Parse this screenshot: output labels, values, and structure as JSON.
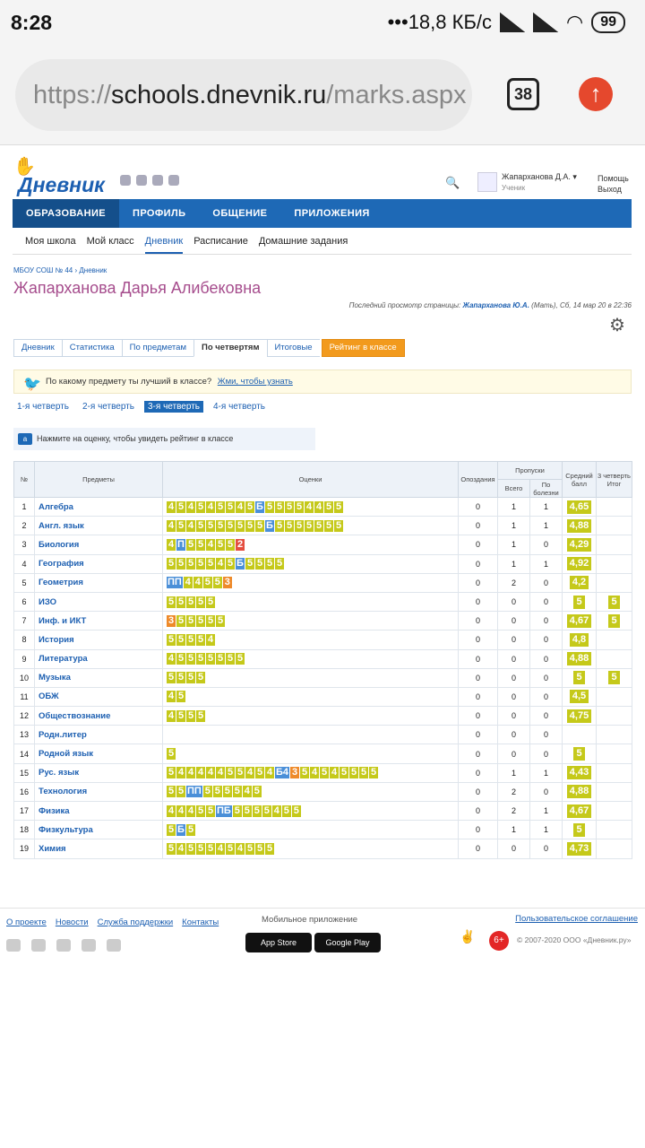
{
  "status_bar": {
    "time": "8:28",
    "network": "•••18,8 КБ/с",
    "battery": "99"
  },
  "browser": {
    "url_prefix": "https://",
    "url_host": "schools.dnevnik.ru",
    "url_path": "/marks.aspx",
    "tab_count": "38"
  },
  "header": {
    "logo": "Дневник",
    "user_name": "Жапарханова Д.А. ▾",
    "user_role": "Ученик",
    "help": "Помощь",
    "logout": "Выход"
  },
  "main_nav": [
    "ОБРАЗОВАНИЕ",
    "ПРОФИЛЬ",
    "ОБЩЕНИЕ",
    "ПРИЛОЖЕНИЯ"
  ],
  "sub_nav": [
    "Моя школа",
    "Мой класс",
    "Дневник",
    "Расписание",
    "Домашние задания"
  ],
  "breadcrumb": "МБОУ СОШ № 44 › Дневник",
  "student_name": "Жапарханова Дарья Алибековна",
  "last_view": {
    "label": "Последний просмотр страницы:",
    "who": "Жапарханова Ю.А.",
    "rest": "(Мать), Сб, 14 мар 20 в 22:36"
  },
  "view_tabs": [
    "Дневник",
    "Статистика",
    "По предметам",
    "По четвертям",
    "Итоговые",
    "Рейтинг в классе"
  ],
  "promo": {
    "text": "По какому предмету ты лучший в классе?",
    "link": "Жми, чтобы узнать"
  },
  "quarters": [
    "1-я четверть",
    "2-я четверть",
    "3-я четверть",
    "4-я четверть"
  ],
  "hint": "Нажмите на оценку, чтобы увидеть рейтинг в классе",
  "table_headers": {
    "num": "№",
    "subject": "Предметы",
    "marks": "Оценки",
    "late": "Опоздания",
    "absences": "Пропуски",
    "total": "Всего",
    "ill": "По болезни",
    "avg": "Средний балл",
    "final": "3 четверть Итог"
  },
  "rows": [
    {
      "n": "1",
      "subject": "Алгебра",
      "marks": [
        "4",
        "5",
        "4",
        "5",
        "4",
        "5",
        "5",
        "4",
        "5",
        "Б",
        "5",
        "5",
        "5",
        "5",
        "4",
        "4",
        "5",
        "5"
      ],
      "late": "0",
      "total": "1",
      "ill": "1",
      "avg": "4,65",
      "final": ""
    },
    {
      "n": "2",
      "subject": "Англ. язык",
      "marks": [
        "4",
        "5",
        "4",
        "5",
        "5",
        "5",
        "5",
        "5",
        "5",
        "5",
        "Б",
        "5",
        "5",
        "5",
        "5",
        "5",
        "5",
        "5"
      ],
      "late": "0",
      "total": "1",
      "ill": "1",
      "avg": "4,88",
      "final": ""
    },
    {
      "n": "3",
      "subject": "Биология",
      "marks": [
        "4",
        "П",
        "5",
        "5",
        "4",
        "5",
        "5",
        "2"
      ],
      "late": "0",
      "total": "1",
      "ill": "0",
      "avg": "4,29",
      "final": ""
    },
    {
      "n": "4",
      "subject": "География",
      "marks": [
        "5",
        "5",
        "5",
        "5",
        "5",
        "4",
        "5",
        "Б",
        "5",
        "5",
        "5",
        "5"
      ],
      "late": "0",
      "total": "1",
      "ill": "1",
      "avg": "4,92",
      "final": ""
    },
    {
      "n": "5",
      "subject": "Геометрия",
      "marks": [
        "ПП",
        "4",
        "4",
        "5",
        "5",
        "3"
      ],
      "late": "0",
      "total": "2",
      "ill": "0",
      "avg": "4,2",
      "final": ""
    },
    {
      "n": "6",
      "subject": "ИЗО",
      "marks": [
        "5",
        "5",
        "5",
        "5",
        "5"
      ],
      "late": "0",
      "total": "0",
      "ill": "0",
      "avg": "5",
      "final": "5"
    },
    {
      "n": "7",
      "subject": "Инф. и ИКТ",
      "marks": [
        "3",
        "5",
        "5",
        "5",
        "5",
        "5"
      ],
      "late": "0",
      "total": "0",
      "ill": "0",
      "avg": "4,67",
      "final": "5"
    },
    {
      "n": "8",
      "subject": "История",
      "marks": [
        "5",
        "5",
        "5",
        "5",
        "4"
      ],
      "late": "0",
      "total": "0",
      "ill": "0",
      "avg": "4,8",
      "final": ""
    },
    {
      "n": "9",
      "subject": "Литература",
      "marks": [
        "4",
        "5",
        "5",
        "5",
        "5",
        "5",
        "5",
        "5"
      ],
      "late": "0",
      "total": "0",
      "ill": "0",
      "avg": "4,88",
      "final": ""
    },
    {
      "n": "10",
      "subject": "Музыка",
      "marks": [
        "5",
        "5",
        "5",
        "5"
      ],
      "late": "0",
      "total": "0",
      "ill": "0",
      "avg": "5",
      "final": "5"
    },
    {
      "n": "11",
      "subject": "ОБЖ",
      "marks": [
        "4",
        "5"
      ],
      "late": "0",
      "total": "0",
      "ill": "0",
      "avg": "4,5",
      "final": ""
    },
    {
      "n": "12",
      "subject": "Обществознание",
      "marks": [
        "4",
        "5",
        "5",
        "5"
      ],
      "late": "0",
      "total": "0",
      "ill": "0",
      "avg": "4,75",
      "final": ""
    },
    {
      "n": "13",
      "subject": "Родн.литер",
      "marks": [],
      "late": "0",
      "total": "0",
      "ill": "0",
      "avg": "",
      "final": ""
    },
    {
      "n": "14",
      "subject": "Родной язык",
      "marks": [
        "5"
      ],
      "late": "0",
      "total": "0",
      "ill": "0",
      "avg": "5",
      "final": ""
    },
    {
      "n": "15",
      "subject": "Рус. язык",
      "marks": [
        "5",
        "4",
        "4",
        "4",
        "4",
        "4",
        "5",
        "5",
        "4",
        "5",
        "4",
        "Б4",
        "3",
        "5",
        "4",
        "5",
        "4",
        "5",
        "5",
        "5",
        "5"
      ],
      "late": "0",
      "total": "1",
      "ill": "1",
      "avg": "4,43",
      "final": ""
    },
    {
      "n": "16",
      "subject": "Технология",
      "marks": [
        "5",
        "5",
        "ПП",
        "5",
        "5",
        "5",
        "5",
        "4",
        "5"
      ],
      "late": "0",
      "total": "2",
      "ill": "0",
      "avg": "4,88",
      "final": ""
    },
    {
      "n": "17",
      "subject": "Физика",
      "marks": [
        "4",
        "4",
        "4",
        "5",
        "5",
        "ПБ",
        "5",
        "5",
        "5",
        "5",
        "4",
        "5",
        "5"
      ],
      "late": "0",
      "total": "2",
      "ill": "1",
      "avg": "4,67",
      "final": ""
    },
    {
      "n": "18",
      "subject": "Физкультура",
      "marks": [
        "5",
        "Б",
        "5"
      ],
      "late": "0",
      "total": "1",
      "ill": "1",
      "avg": "5",
      "final": ""
    },
    {
      "n": "19",
      "subject": "Химия",
      "marks": [
        "5",
        "4",
        "5",
        "5",
        "5",
        "4",
        "5",
        "4",
        "5",
        "5",
        "5"
      ],
      "late": "0",
      "total": "0",
      "ill": "0",
      "avg": "4,73",
      "final": ""
    }
  ],
  "footer": {
    "links": [
      "О проекте",
      "Новости",
      "Служба поддержки",
      "Контакты"
    ],
    "mobile_label": "Мобильное приложение",
    "appstore": "App Store",
    "googleplay": "Google Play",
    "agreement": "Пользовательское соглашение",
    "age": "6+",
    "copyright": "© 2007-2020 ООО «Дневник.ру»"
  }
}
